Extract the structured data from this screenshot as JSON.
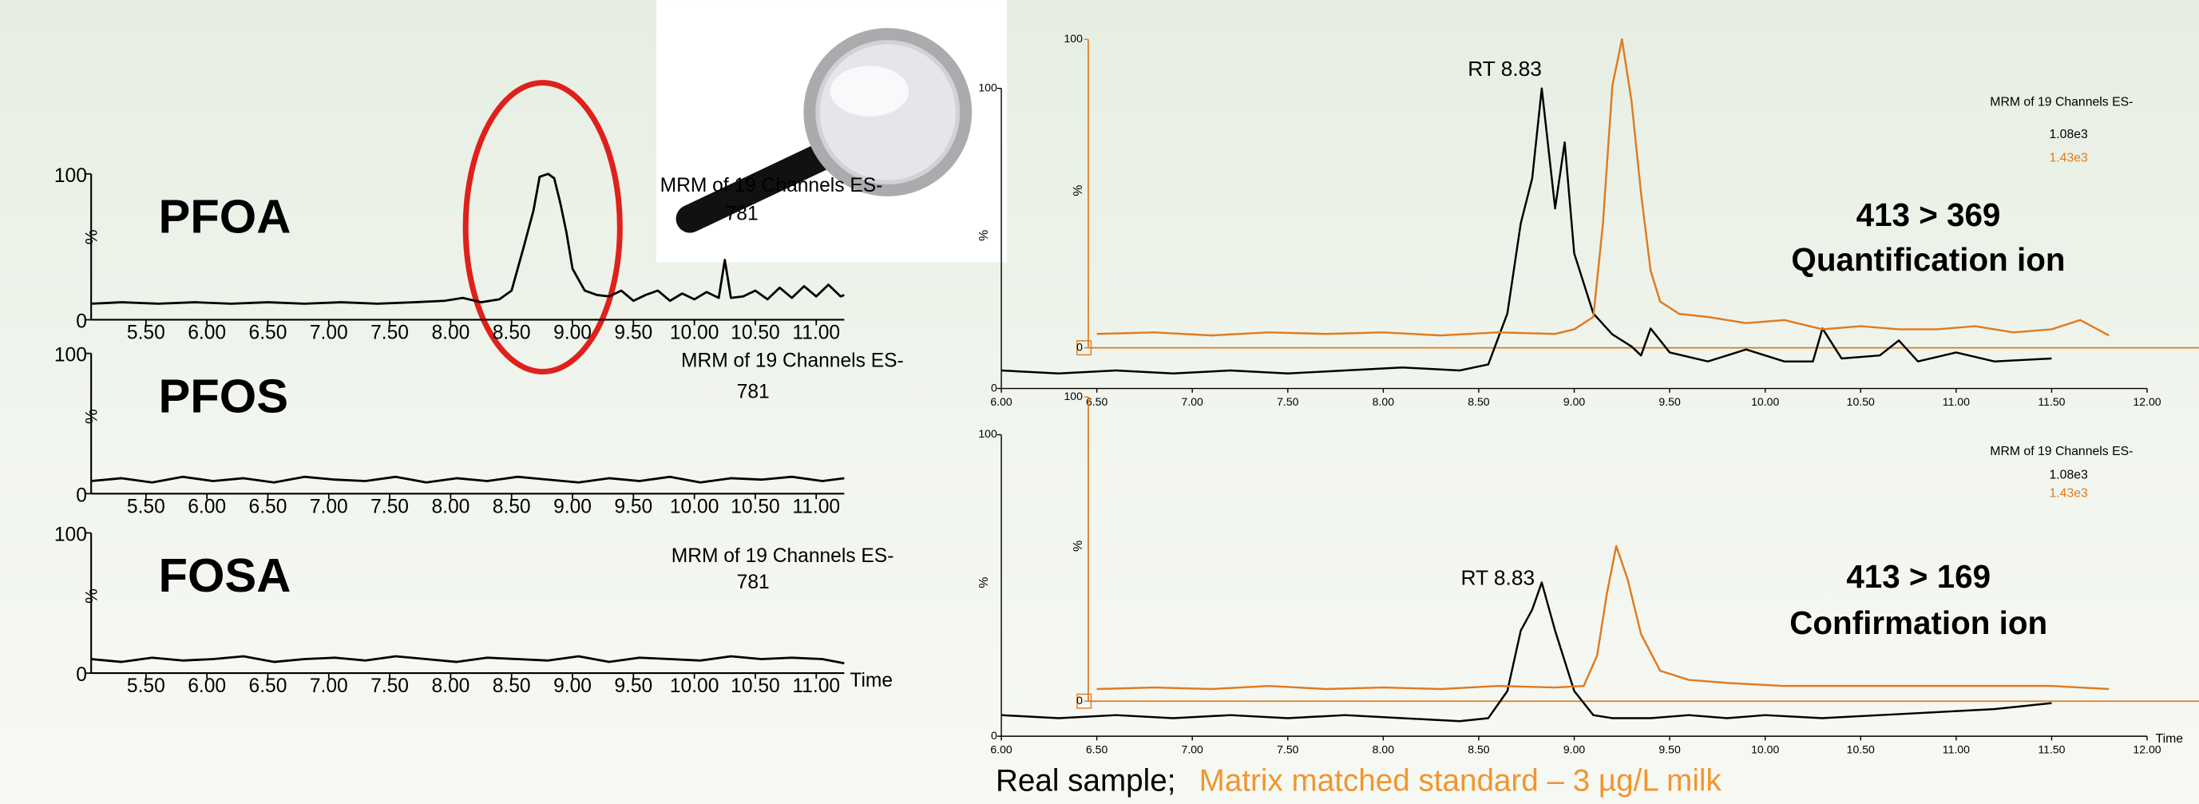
{
  "chart_data": [
    {
      "type": "line",
      "title": "PFOA",
      "annotations": [
        "MRM of 19 Channels ES-",
        "781"
      ],
      "y_label": "%",
      "color": "#000000",
      "x": [
        5.05,
        5.3,
        5.6,
        5.9,
        6.2,
        6.5,
        6.8,
        7.1,
        7.4,
        7.7,
        7.95,
        8.1,
        8.25,
        8.4,
        8.5,
        8.6,
        8.68,
        8.73,
        8.8,
        8.85,
        8.9,
        8.95,
        9.0,
        9.1,
        9.2,
        9.3,
        9.4,
        9.5,
        9.6,
        9.7,
        9.8,
        9.9,
        10.0,
        10.1,
        10.2,
        10.25,
        10.3,
        10.4,
        10.5,
        10.6,
        10.7,
        10.8,
        10.9,
        11.0,
        11.1,
        11.2,
        11.23
      ],
      "values": [
        11,
        12,
        11,
        12,
        11,
        12,
        11,
        12,
        11,
        12,
        13,
        15,
        12,
        14,
        20,
        50,
        75,
        98,
        100,
        97,
        80,
        60,
        35,
        20,
        17,
        16,
        20,
        13,
        17,
        20,
        13,
        18,
        14,
        19,
        15,
        41,
        15,
        16,
        20,
        14,
        22,
        15,
        23,
        16,
        24,
        16,
        17
      ],
      "xlim": [
        5.05,
        11.23
      ],
      "ylim": [
        0,
        100
      ],
      "yticks": [
        0,
        100
      ],
      "xticks": [
        {
          "value": 5.5,
          "label": "5.50"
        },
        {
          "value": 6.0,
          "label": "6.00"
        },
        {
          "value": 6.5,
          "label": "6.50"
        },
        {
          "value": 7.0,
          "label": "7.00"
        },
        {
          "value": 7.5,
          "label": "7.50"
        },
        {
          "value": 8.0,
          "label": "8.00"
        },
        {
          "value": 8.5,
          "label": "8.50"
        },
        {
          "value": 9.0,
          "label": "9.00"
        },
        {
          "value": 9.5,
          "label": "9.50"
        },
        {
          "value": 10.0,
          "label": "10.00"
        },
        {
          "value": 10.5,
          "label": "10.50"
        },
        {
          "value": 11.0,
          "label": "11.00"
        }
      ]
    },
    {
      "type": "line",
      "title": "PFOS",
      "annotations": [
        "MRM of 19 Channels ES-",
        "781"
      ],
      "y_label": "%",
      "color": "#000000",
      "x": [
        5.05,
        5.3,
        5.55,
        5.8,
        6.05,
        6.3,
        6.55,
        6.8,
        7.05,
        7.3,
        7.55,
        7.8,
        8.05,
        8.3,
        8.55,
        8.8,
        9.05,
        9.3,
        9.55,
        9.8,
        10.05,
        10.3,
        10.55,
        10.8,
        11.05,
        11.23
      ],
      "values": [
        9,
        11,
        8,
        12,
        9,
        11,
        8,
        12,
        10,
        9,
        12,
        8,
        11,
        9,
        12,
        10,
        8,
        11,
        9,
        12,
        8,
        11,
        10,
        12,
        9,
        11
      ],
      "xlim": [
        5.05,
        11.23
      ],
      "ylim": [
        0,
        100
      ],
      "yticks": [
        0,
        100
      ],
      "xticks": [
        {
          "value": 5.5,
          "label": "5.50"
        },
        {
          "value": 6.0,
          "label": "6.00"
        },
        {
          "value": 6.5,
          "label": "6.50"
        },
        {
          "value": 7.0,
          "label": "7.00"
        },
        {
          "value": 7.5,
          "label": "7.50"
        },
        {
          "value": 8.0,
          "label": "8.00"
        },
        {
          "value": 8.5,
          "label": "8.50"
        },
        {
          "value": 9.0,
          "label": "9.00"
        },
        {
          "value": 9.5,
          "label": "9.50"
        },
        {
          "value": 10.0,
          "label": "10.00"
        },
        {
          "value": 10.5,
          "label": "10.50"
        },
        {
          "value": 11.0,
          "label": "11.00"
        }
      ]
    },
    {
      "type": "line",
      "title": "FOSA",
      "annotations": [
        "MRM of 19 Channels ES-",
        "781"
      ],
      "y_label": "%",
      "x_label": "Time",
      "color": "#000000",
      "x": [
        5.05,
        5.3,
        5.55,
        5.8,
        6.05,
        6.3,
        6.55,
        6.8,
        7.05,
        7.3,
        7.55,
        7.8,
        8.05,
        8.3,
        8.55,
        8.8,
        9.05,
        9.3,
        9.55,
        9.8,
        10.05,
        10.3,
        10.55,
        10.8,
        11.05,
        11.23
      ],
      "values": [
        10,
        8,
        11,
        9,
        10,
        12,
        8,
        10,
        11,
        9,
        12,
        10,
        8,
        11,
        10,
        9,
        12,
        8,
        11,
        10,
        9,
        12,
        10,
        11,
        10,
        7
      ],
      "xlim": [
        5.05,
        11.23
      ],
      "ylim": [
        0,
        100
      ],
      "yticks": [
        0,
        100
      ],
      "xticks": [
        {
          "value": 5.5,
          "label": "5.50"
        },
        {
          "value": 6.0,
          "label": "6.00"
        },
        {
          "value": 6.5,
          "label": "6.50"
        },
        {
          "value": 7.0,
          "label": "7.00"
        },
        {
          "value": 7.5,
          "label": "7.50"
        },
        {
          "value": 8.0,
          "label": "8.00"
        },
        {
          "value": 8.5,
          "label": "8.50"
        },
        {
          "value": 9.0,
          "label": "9.00"
        },
        {
          "value": 9.5,
          "label": "9.50"
        },
        {
          "value": 10.0,
          "label": "10.00"
        },
        {
          "value": 10.5,
          "label": "10.50"
        },
        {
          "value": 11.0,
          "label": "11.00"
        }
      ]
    },
    {
      "type": "line",
      "annotations": [
        "RT 8.83",
        "MRM of 19 Channels ES-",
        "413 > 369",
        "Quantification ion"
      ],
      "y_label": "%",
      "y2_label": "%",
      "series": [
        {
          "name": "1.08e3",
          "color": "#000000",
          "x": [
            6.0,
            6.3,
            6.6,
            6.9,
            7.2,
            7.5,
            7.8,
            8.1,
            8.4,
            8.55,
            8.65,
            8.72,
            8.78,
            8.83,
            8.9,
            8.95,
            9.0,
            9.05,
            9.1,
            9.2,
            9.3,
            9.35,
            9.4,
            9.5,
            9.7,
            9.9,
            10.1,
            10.25,
            10.3,
            10.4,
            10.6,
            10.7,
            10.8,
            11.0,
            11.2,
            11.5
          ],
          "values": [
            6,
            5,
            6,
            5,
            6,
            5,
            6,
            7,
            6,
            8,
            25,
            55,
            70,
            100,
            60,
            82,
            45,
            35,
            25,
            18,
            14,
            11,
            20,
            12,
            9,
            13,
            9,
            9,
            20,
            10,
            11,
            16,
            9,
            12,
            9,
            10
          ]
        },
        {
          "name": "1.43e3",
          "color": "#e07b1f",
          "axis": "y2",
          "x": [
            6.5,
            6.8,
            7.1,
            7.4,
            7.7,
            8.0,
            8.3,
            8.6,
            8.9,
            9.0,
            9.1,
            9.15,
            9.2,
            9.25,
            9.3,
            9.35,
            9.4,
            9.45,
            9.55,
            9.7,
            9.9,
            10.1,
            10.3,
            10.5,
            10.7,
            10.9,
            11.1,
            11.3,
            11.5,
            11.65,
            11.8
          ],
          "values": [
            4.5,
            5,
            4,
            5,
            4.5,
            5,
            4,
            5,
            4.5,
            6,
            10,
            40,
            85,
            100,
            80,
            50,
            25,
            15,
            11,
            10,
            8,
            9,
            6,
            7,
            6,
            6,
            7,
            5,
            6,
            9,
            4
          ]
        }
      ],
      "xlim": [
        6.0,
        12.0
      ],
      "ylim": [
        0,
        100
      ],
      "yticks": [
        0,
        100
      ],
      "y2lim": [
        0,
        100
      ],
      "y2ticks": [
        0,
        100
      ],
      "xticks": [
        {
          "value": 6.0,
          "label": "6.00"
        },
        {
          "value": 6.5,
          "label": "6.50"
        },
        {
          "value": 7.0,
          "label": "7.00"
        },
        {
          "value": 7.5,
          "label": "7.50"
        },
        {
          "value": 8.0,
          "label": "8.00"
        },
        {
          "value": 8.5,
          "label": "8.50"
        },
        {
          "value": 9.0,
          "label": "9.00"
        },
        {
          "value": 9.5,
          "label": "9.50"
        },
        {
          "value": 10.0,
          "label": "10.00"
        },
        {
          "value": 10.5,
          "label": "10.50"
        },
        {
          "value": 11.0,
          "label": "11.00"
        },
        {
          "value": 11.5,
          "label": "11.50"
        },
        {
          "value": 12.0,
          "label": "12.00"
        }
      ]
    },
    {
      "type": "line",
      "annotations": [
        "RT 8.83",
        "MRM of 19 Channels ES-",
        "413 > 169",
        "Confirmation ion"
      ],
      "y_label": "%",
      "y2_label": "%",
      "x_label": "Time",
      "series": [
        {
          "name": "1.08e3",
          "color": "#000000",
          "x": [
            6.0,
            6.3,
            6.6,
            6.9,
            7.2,
            7.5,
            7.8,
            8.1,
            8.4,
            8.55,
            8.65,
            8.72,
            8.78,
            8.83,
            8.9,
            9.0,
            9.1,
            9.2,
            9.4,
            9.6,
            9.8,
            10.0,
            10.3,
            10.6,
            10.9,
            11.2,
            11.5
          ],
          "values": [
            7,
            6,
            7,
            6,
            7,
            6,
            7,
            6,
            5,
            6,
            15,
            35,
            42,
            51,
            35,
            15,
            7,
            6,
            6,
            7,
            6,
            7,
            6,
            7,
            8,
            9,
            11
          ]
        },
        {
          "name": "1.43e3",
          "color": "#e07b1f",
          "axis": "y2",
          "x": [
            6.5,
            6.8,
            7.1,
            7.4,
            7.7,
            8.0,
            8.3,
            8.6,
            8.9,
            9.05,
            9.12,
            9.17,
            9.22,
            9.28,
            9.35,
            9.45,
            9.6,
            9.8,
            10.1,
            10.5,
            11.0,
            11.5,
            11.8
          ],
          "values": [
            4,
            4.5,
            4,
            5,
            4,
            4.5,
            4,
            5,
            4.5,
            5,
            15,
            35,
            51,
            40,
            22,
            10,
            7,
            6,
            5,
            5,
            5,
            5,
            4
          ]
        }
      ],
      "xlim": [
        6.0,
        12.0
      ],
      "ylim": [
        0,
        100
      ],
      "yticks": [
        0,
        100
      ],
      "y2lim": [
        0,
        100
      ],
      "y2ticks": [
        0,
        100
      ],
      "xticks": [
        {
          "value": 6.0,
          "label": "6.00"
        },
        {
          "value": 6.5,
          "label": "6.50"
        },
        {
          "value": 7.0,
          "label": "7.00"
        },
        {
          "value": 7.5,
          "label": "7.50"
        },
        {
          "value": 8.0,
          "label": "8.00"
        },
        {
          "value": 8.5,
          "label": "8.50"
        },
        {
          "value": 9.0,
          "label": "9.00"
        },
        {
          "value": 9.5,
          "label": "9.50"
        },
        {
          "value": 10.0,
          "label": "10.00"
        },
        {
          "value": 10.5,
          "label": "10.50"
        },
        {
          "value": 11.0,
          "label": "11.00"
        },
        {
          "value": 11.5,
          "label": "11.50"
        },
        {
          "value": 12.0,
          "label": "12.00"
        }
      ]
    }
  ],
  "caption": {
    "sample": "Real sample;",
    "standard": "Matrix matched standard – 3 µg/L milk"
  }
}
